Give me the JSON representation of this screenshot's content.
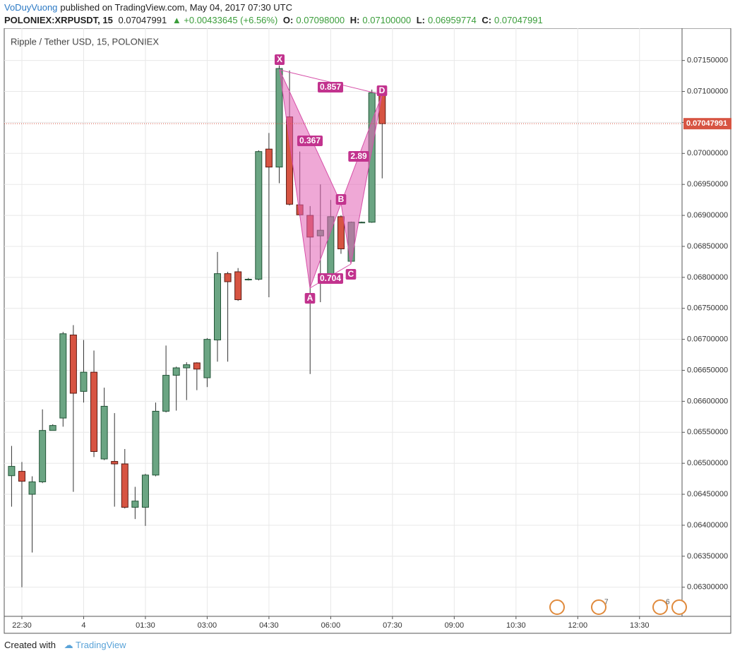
{
  "header": {
    "user": "VoDuyVuong",
    "published": "published on TradingView.com, May 04, 2017 07:30 UTC",
    "symbol": "POLONIEX:XRPUSDT, 15",
    "price": "0.07047991",
    "change": "▲ +0.00433645 (+6.56%)",
    "ohlc": [
      {
        "key": "O:",
        "value": "0.07098000"
      },
      {
        "key": "H:",
        "value": "0.07100000"
      },
      {
        "key": "L:",
        "value": "0.06959774"
      },
      {
        "key": "C:",
        "value": "0.07047991"
      }
    ]
  },
  "chart_data": {
    "type": "candlestick",
    "title": "Ripple / Tether USD, 15, POLONIEX",
    "categories": [
      null,
      "22:30",
      null,
      null,
      null,
      null,
      null,
      "4",
      null,
      null,
      null,
      null,
      null,
      "01:30",
      null,
      null,
      null,
      null,
      null,
      "03:00",
      null,
      null,
      null,
      null,
      null,
      "04:30",
      null,
      null,
      null,
      null,
      null,
      "06:00",
      null,
      null,
      null,
      null,
      null,
      "07:30",
      null,
      null,
      null,
      null,
      null,
      "09:00",
      null,
      null,
      null,
      null,
      null,
      "10:30",
      null,
      null,
      null,
      null,
      null,
      "12:00",
      null,
      null,
      null,
      null,
      null,
      "13:30",
      null,
      null,
      null,
      null
    ],
    "open": [
      0.0648,
      0.06487,
      0.0645,
      0.0647,
      0.06553,
      0.06573,
      0.06707,
      0.06616,
      0.06647,
      0.06507,
      0.06503,
      0.06499,
      0.06429,
      0.06429,
      0.06481,
      0.06584,
      0.06642,
      0.06654,
      0.06662,
      0.06638,
      0.06699,
      0.06806,
      0.06809,
      0.06797,
      0.06797,
      0.07007,
      0.06978,
      0.07059,
      0.06917,
      0.069,
      0.06867,
      0.068,
      0.06898,
      0.06826,
      0.06889,
      0.06889,
      0.07098,
      null,
      null,
      null,
      null,
      null,
      null,
      null,
      null,
      null,
      null,
      null,
      null,
      null,
      null,
      null,
      null,
      null,
      null,
      null,
      null,
      null,
      null,
      null,
      null,
      null,
      null,
      null,
      null,
      null
    ],
    "high": [
      0.06528,
      0.06502,
      0.06479,
      0.06587,
      0.06563,
      0.06712,
      0.06723,
      0.06699,
      0.06682,
      0.06622,
      0.06581,
      0.06523,
      0.06462,
      0.06483,
      0.06598,
      0.0669,
      0.06656,
      0.06663,
      0.06663,
      0.06702,
      0.06841,
      0.06809,
      0.06815,
      0.06799,
      0.07005,
      0.07033,
      0.07142,
      0.07134,
      0.07003,
      0.06915,
      0.0695,
      0.06925,
      0.069,
      0.0689,
      0.0689,
      0.07103,
      0.071,
      null,
      null,
      null,
      null,
      null,
      null,
      null,
      null,
      null,
      null,
      null,
      null,
      null,
      null,
      null,
      null,
      null,
      null,
      null,
      null,
      null,
      null,
      null,
      null,
      null,
      null,
      null,
      null,
      null
    ],
    "low": [
      0.0643,
      0.063,
      0.06356,
      0.06468,
      0.06553,
      0.06559,
      0.06454,
      0.06598,
      0.0651,
      0.06505,
      0.0643,
      0.06427,
      0.0641,
      0.06399,
      0.06479,
      0.06582,
      0.06585,
      0.06602,
      0.06618,
      0.06623,
      0.06664,
      0.06664,
      0.06762,
      0.06795,
      0.06795,
      0.06768,
      0.06952,
      0.06916,
      0.06899,
      0.06644,
      0.0676,
      0.06798,
      0.06838,
      0.06824,
      0.06888,
      0.06888,
      0.06959774,
      null,
      null,
      null,
      null,
      null,
      null,
      null,
      null,
      null,
      null,
      null,
      null,
      null,
      null,
      null,
      null,
      null,
      null,
      null,
      null,
      null,
      null,
      null,
      null,
      null,
      null,
      null,
      null,
      null
    ],
    "close": [
      0.06495,
      0.06471,
      0.0647,
      0.06553,
      0.06561,
      0.06709,
      0.06613,
      0.06647,
      0.06519,
      0.06592,
      0.06499,
      0.06429,
      0.06439,
      0.06481,
      0.06584,
      0.06642,
      0.06654,
      0.06659,
      0.06652,
      0.067,
      0.06806,
      0.06793,
      0.06764,
      0.06797,
      0.07003,
      0.06978,
      0.07137,
      0.06918,
      0.06901,
      0.06865,
      0.06876,
      0.06898,
      0.06846,
      0.06889,
      0.06889,
      0.07098,
      0.07047991,
      null,
      null,
      null,
      null,
      null,
      null,
      null,
      null,
      null,
      null,
      null,
      null,
      null,
      null,
      null,
      null,
      null,
      null,
      null,
      null,
      null,
      null,
      null,
      null,
      null,
      null,
      null,
      null,
      null
    ],
    "up_color": "#6ba583",
    "down_color": "#d75442",
    "ylim": [
      0.06253,
      0.07202
    ],
    "yticks": [
      {
        "value": 0.063,
        "label": "0.06300000"
      },
      {
        "value": 0.0635,
        "label": "0.06350000"
      },
      {
        "value": 0.064,
        "label": "0.06400000"
      },
      {
        "value": 0.0645,
        "label": "0.06450000"
      },
      {
        "value": 0.065,
        "label": "0.06500000"
      },
      {
        "value": 0.0655,
        "label": "0.06550000"
      },
      {
        "value": 0.066,
        "label": "0.06600000"
      },
      {
        "value": 0.0665,
        "label": "0.06650000"
      },
      {
        "value": 0.067,
        "label": "0.06700000"
      },
      {
        "value": 0.0675,
        "label": "0.06750000"
      },
      {
        "value": 0.068,
        "label": "0.06800000"
      },
      {
        "value": 0.0685,
        "label": "0.06850000"
      },
      {
        "value": 0.069,
        "label": "0.06900000"
      },
      {
        "value": 0.0695,
        "label": "0.06950000"
      },
      {
        "value": 0.07,
        "label": "0.07000000"
      },
      {
        "value": 0.0705,
        "label": "0.07050000"
      },
      {
        "value": 0.071,
        "label": "0.07100000"
      },
      {
        "value": 0.0715,
        "label": "0.07150000"
      }
    ],
    "last_price": {
      "value": 0.07047991,
      "label": "0.07047991"
    },
    "grid": true,
    "pattern": {
      "points": [
        "X",
        "A",
        "B",
        "C",
        "D"
      ],
      "ratios": [
        "0.857",
        "0.367",
        "0.704",
        "2.89"
      ]
    },
    "events": [
      "7",
      "6"
    ]
  },
  "footer": {
    "created": "Created with",
    "brand": "TradingView"
  }
}
